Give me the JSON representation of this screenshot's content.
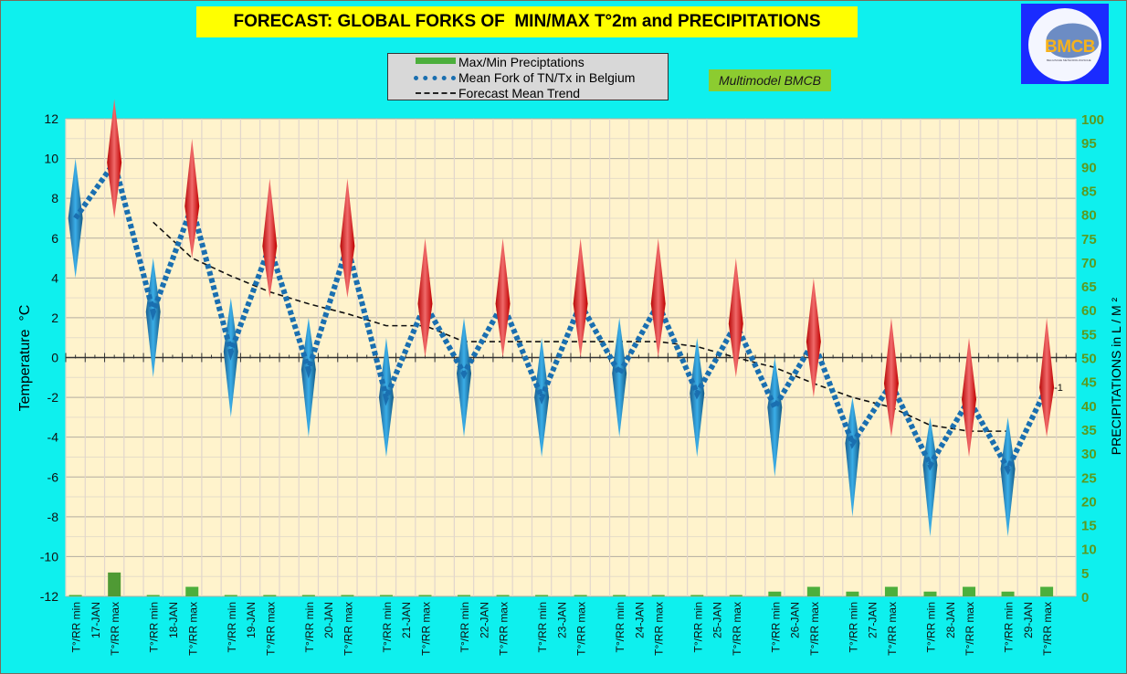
{
  "title": "FORECAST: GLOBAL FORKS OF  MIN/MAX T°2m and PRECIPITATIONS",
  "logo": {
    "text": "BMCB",
    "subtitle": "BELGISCHE METEOROLOGISCHE"
  },
  "badge": "Multimodel BMCB",
  "legend": {
    "items": [
      {
        "label": "Max/Min Preciptations",
        "icon": "green-bar"
      },
      {
        "label": "Mean Fork of TN/Tx in Belgium",
        "icon": "blue-dotted-line"
      },
      {
        "label": "Forecast Mean Trend",
        "icon": "black-dashed-line"
      }
    ]
  },
  "colors": {
    "background": "#0ef0ee",
    "plot_bg": "#fff3cc",
    "min_marker": "#2a8fd0",
    "max_marker": "#e01010",
    "mean_line": "#1a6fb0",
    "precip_bar": "#4caf3c",
    "right_axis_text": "#5a9a20"
  },
  "chart_data": {
    "type": "line",
    "title": "FORECAST: GLOBAL FORKS OF  MIN/MAX T°2m and PRECIPITATIONS",
    "ylabel": "Temperature  °C",
    "y2label": "PRECIPITATIONS in L / M ²",
    "ylim": [
      -12,
      12
    ],
    "y2lim": [
      0,
      100
    ],
    "yticks": [
      "12",
      "10",
      "8",
      "6",
      "4",
      "2",
      "0",
      "-2",
      "-4",
      "-6",
      "-8",
      "-10",
      "-12"
    ],
    "y2ticks": [
      "100",
      "95",
      "90",
      "85",
      "80",
      "75",
      "70",
      "65",
      "60",
      "55",
      "50",
      "45",
      "40",
      "35",
      "30",
      "25",
      "20",
      "15",
      "10",
      "5",
      "0"
    ],
    "grid": true,
    "legend_position": "top-center",
    "min_label": "T°/RR min",
    "max_label": "T°/RR max",
    "days": [
      {
        "date": "17-JAN",
        "min": {
          "low": 4,
          "high": 10,
          "mean": 7,
          "precip": 0
        },
        "max": {
          "low": 7,
          "high": 13,
          "mean": 9.8,
          "precip": 5
        },
        "trend_min": null,
        "trend_max": null
      },
      {
        "date": "18-JAN",
        "min": {
          "low": -1,
          "high": 5,
          "mean": 2.3,
          "precip": 0
        },
        "max": {
          "low": 5,
          "high": 11,
          "mean": 7.6,
          "precip": 2
        },
        "trend_min": 6.8,
        "trend_max": 5.0
      },
      {
        "date": "19-JAN",
        "min": {
          "low": -3,
          "high": 3,
          "mean": 0.3,
          "precip": 0
        },
        "max": {
          "low": 3,
          "high": 9,
          "mean": 5.6,
          "precip": 0
        },
        "trend_min": 4.1,
        "trend_max": 3.3
      },
      {
        "date": "20-JAN",
        "min": {
          "low": -4,
          "high": 2,
          "mean": -0.6,
          "precip": 0
        },
        "max": {
          "low": 3,
          "high": 9,
          "mean": 5.6,
          "precip": 0
        },
        "trend_min": 2.7,
        "trend_max": 2.2
      },
      {
        "date": "21-JAN",
        "min": {
          "low": -5,
          "high": 1,
          "mean": -2.0,
          "precip": 0
        },
        "max": {
          "low": 0,
          "high": 6,
          "mean": 2.7,
          "precip": 0
        },
        "trend_min": 1.6,
        "trend_max": 1.6
      },
      {
        "date": "22-JAN",
        "min": {
          "low": -4,
          "high": 2,
          "mean": -0.8,
          "precip": 0
        },
        "max": {
          "low": 0,
          "high": 6,
          "mean": 2.7,
          "precip": 0
        },
        "trend_min": 0.8,
        "trend_max": 0.8
      },
      {
        "date": "23-JAN",
        "min": {
          "low": -5,
          "high": 1,
          "mean": -2.0,
          "precip": 0
        },
        "max": {
          "low": 0,
          "high": 6,
          "mean": 2.7,
          "precip": 0
        },
        "trend_min": 0.8,
        "trend_max": 0.8
      },
      {
        "date": "24-JAN",
        "min": {
          "low": -4,
          "high": 2,
          "mean": -0.8,
          "precip": 0
        },
        "max": {
          "low": 0,
          "high": 6,
          "mean": 2.7,
          "precip": 0
        },
        "trend_min": 0.8,
        "trend_max": 0.8
      },
      {
        "date": "25-JAN",
        "min": {
          "low": -5,
          "high": 1,
          "mean": -1.8,
          "precip": 0
        },
        "max": {
          "low": -1,
          "high": 5,
          "mean": 1.7,
          "precip": 0
        },
        "trend_min": 0.55,
        "trend_max": 0.0
      },
      {
        "date": "26-JAN",
        "min": {
          "low": -6,
          "high": 0,
          "mean": -2.5,
          "precip": 1
        },
        "max": {
          "low": -2,
          "high": 4,
          "mean": 0.8,
          "precip": 2
        },
        "trend_min": -0.5,
        "trend_max": -1.3
      },
      {
        "date": "27-JAN",
        "min": {
          "low": -8,
          "high": -2,
          "mean": -4.3,
          "precip": 1
        },
        "max": {
          "low": -4,
          "high": 2,
          "mean": -1.3,
          "precip": 2
        },
        "trend_min": -2.0,
        "trend_max": -2.5
      },
      {
        "date": "28-JAN",
        "min": {
          "low": -9,
          "high": -3,
          "mean": -5.4,
          "precip": 1
        },
        "max": {
          "low": -5,
          "high": 1,
          "mean": -2.1,
          "precip": 2
        },
        "trend_min": -3.4,
        "trend_max": -3.7
      },
      {
        "date": "29-JAN",
        "min": {
          "low": -9,
          "high": -3,
          "mean": -5.6,
          "precip": 1
        },
        "max": {
          "low": -4,
          "high": 2,
          "mean": -1.5,
          "precip": 2
        },
        "trend_min": -3.7,
        "trend_max": null
      }
    ],
    "annotations": [
      {
        "text": "-1",
        "at": "29-JAN max"
      }
    ]
  }
}
